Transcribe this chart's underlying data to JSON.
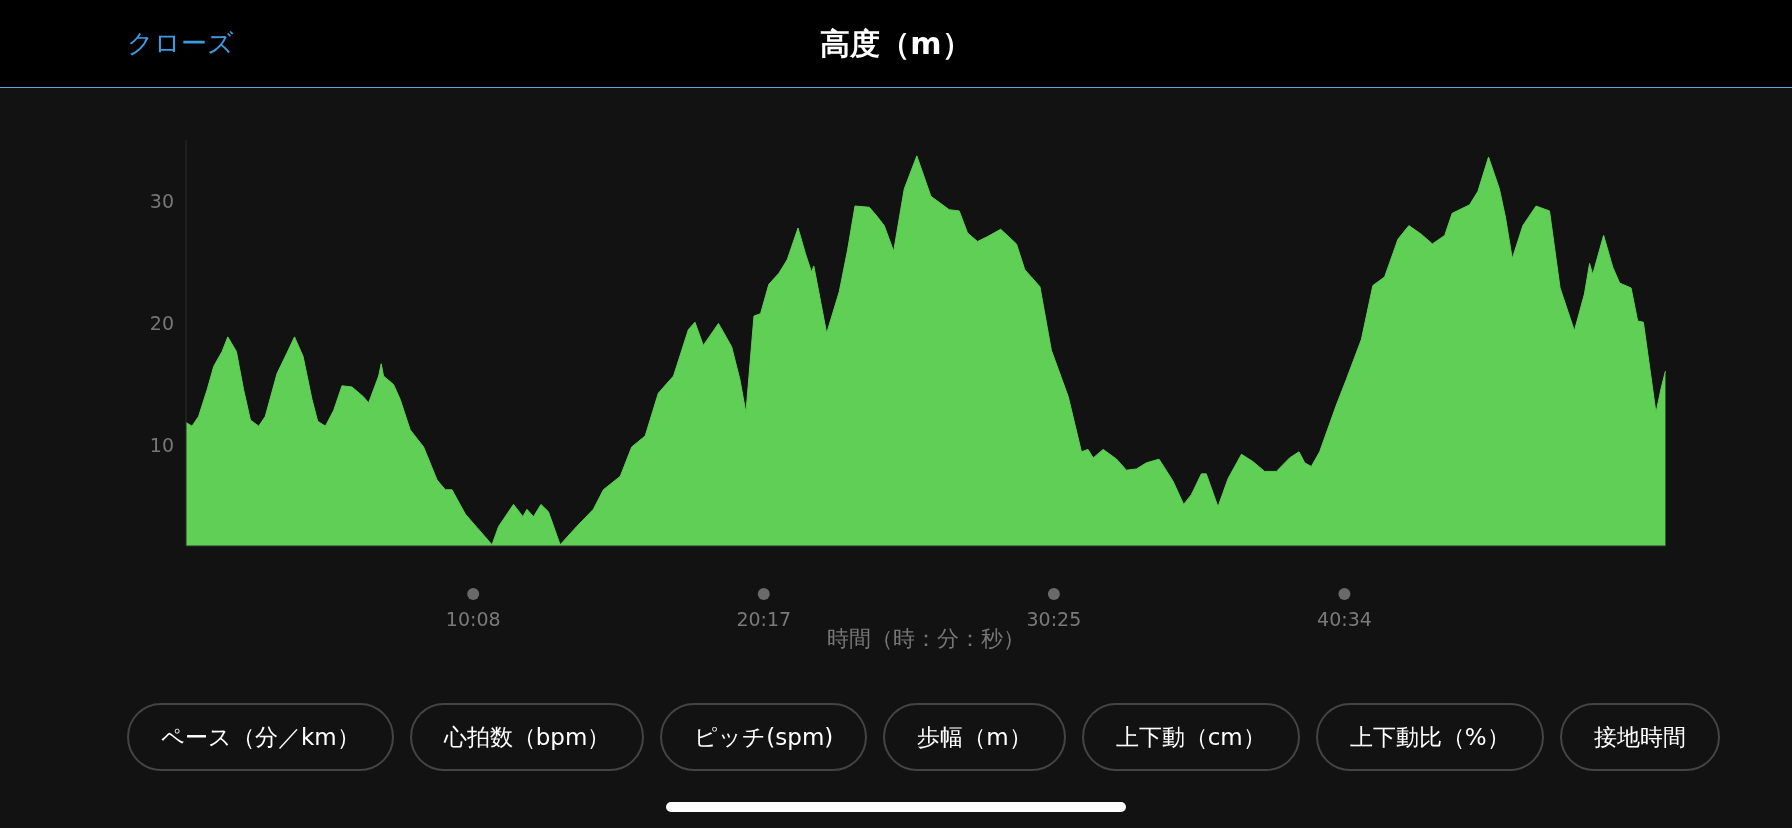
{
  "chart_data": {
    "type": "area",
    "title": "高度（m）",
    "xlabel": "時間（時：分：秒）",
    "annotations": [
      "クローズ",
      "ペース（分／km）",
      "心拍数（bpm）",
      "ピッチ(spm)",
      "歩幅（m）",
      "上下動（cm）",
      "上下動比（%）",
      "接地時間"
    ],
    "x": [
      0.1,
      0.31,
      0.54,
      0.84,
      1.07,
      1.36,
      1.56,
      1.86,
      2.11,
      2.35,
      2.64,
      2.87,
      3.28,
      3.63,
      3.89,
      4.19,
      4.5,
      4.7,
      4.97,
      5.26,
      5.55,
      5.9,
      6.3,
      6.48,
      6.83,
      6.92,
      7.0,
      7.35,
      7.58,
      7.93,
      8.4,
      8.87,
      9.16,
      9.39,
      9.86,
      10.27,
      10.79,
      11.02,
      11.54,
      11.87,
      12.01,
      12.24,
      12.5,
      12.76,
      13.17,
      13.75,
      14.33,
      14.68,
      15.27,
      15.67,
      16.14,
      16.6,
      16.9,
      17.13,
      17.65,
      17.88,
      18.17,
      18.7,
      19.16,
      19.45,
      19.66,
      19.94,
      20.17,
      20.46,
      20.81,
      21.1,
      21.48,
      21.74,
      21.95,
      22.03,
      22.48,
      22.92,
      23.21,
      23.47,
      23.97,
      24.26,
      24.49,
      24.82,
      25.19,
      25.63,
      26.12,
      26.47,
      26.76,
      27.11,
      27.4,
      27.75,
      28.1,
      28.56,
      29.11,
      29.4,
      29.93,
      30.33,
      30.92,
      31.38,
      31.61,
      31.79,
      32.14,
      32.61,
      32.95,
      33.3,
      33.65,
      34.09,
      34.58,
      34.95,
      35.22,
      35.57,
      35.74,
      36.15,
      36.5,
      36.97,
      37.37,
      37.78,
      38.19,
      38.65,
      38.98,
      39.18,
      39.41,
      39.7,
      40.28,
      40.63,
      41.16,
      41.56,
      41.97,
      42.44,
      42.82,
      43.25,
      43.64,
      44.07,
      44.33,
      44.94,
      45.23,
      45.6,
      45.98,
      46.19,
      46.43,
      46.8,
      47.26,
      47.73,
      48.1,
      48.6,
      48.95,
      49.13,
      49.24,
      49.62,
      49.94,
      50.18,
      50.58,
      50.81,
      51.01,
      51.45,
      51.63,
      51.78
    ],
    "series": [
      {
        "color": "#5fcf55",
        "values": [
          11.9,
          11.6,
          12.4,
          14.6,
          16.5,
          17.7,
          18.9,
          17.7,
          14.6,
          12.1,
          11.6,
          12.4,
          15.9,
          17.6,
          18.9,
          17.3,
          13.8,
          12.0,
          11.6,
          12.9,
          14.9,
          14.8,
          14.0,
          13.5,
          15.7,
          16.7,
          15.7,
          15.0,
          13.8,
          11.3,
          9.9,
          7.2,
          6.4,
          6.4,
          4.4,
          3.3,
          1.9,
          3.4,
          5.2,
          4.2,
          4.8,
          4.2,
          5.2,
          4.6,
          1.9,
          3.4,
          4.8,
          6.4,
          7.5,
          9.9,
          10.8,
          14.3,
          15.1,
          15.7,
          19.5,
          20.1,
          18.2,
          20.0,
          18.1,
          15.4,
          12.7,
          20.6,
          20.8,
          23.2,
          24.1,
          25.2,
          27.8,
          25.7,
          24.2,
          24.7,
          19.2,
          22.6,
          26.0,
          29.6,
          29.5,
          28.7,
          28.0,
          25.9,
          31.0,
          33.7,
          30.4,
          29.8,
          29.3,
          29.2,
          27.4,
          26.7,
          27.1,
          27.7,
          26.5,
          24.4,
          23.0,
          17.8,
          14.0,
          9.5,
          9.7,
          9.0,
          9.7,
          8.9,
          8.0,
          8.1,
          8.6,
          8.9,
          7.1,
          5.2,
          6.0,
          7.7,
          7.7,
          5.0,
          7.3,
          9.3,
          8.7,
          7.9,
          7.9,
          9.0,
          9.5,
          8.6,
          8.3,
          9.5,
          13.3,
          15.4,
          18.7,
          23.1,
          23.8,
          26.9,
          28.0,
          27.3,
          26.5,
          27.2,
          29.0,
          29.7,
          30.8,
          33.6,
          31.0,
          28.7,
          25.3,
          28.0,
          29.6,
          29.2,
          22.9,
          19.4,
          22.4,
          24.9,
          24.0,
          27.2,
          24.6,
          23.3,
          22.9,
          20.2,
          20.1,
          12.7,
          14.7,
          16.1
        ]
      }
    ],
    "xticks": [
      {
        "value": 10.133,
        "label": "10:08"
      },
      {
        "value": 20.283,
        "label": "20:17"
      },
      {
        "value": 30.417,
        "label": "30:25"
      },
      {
        "value": 40.567,
        "label": "40:34"
      }
    ],
    "xlim": [
      0.1,
      51.8
    ],
    "ylim": [
      1.8,
      35
    ],
    "yticks": [
      10,
      20,
      30
    ],
    "grid": false,
    "legend": false,
    "marker": "none"
  }
}
